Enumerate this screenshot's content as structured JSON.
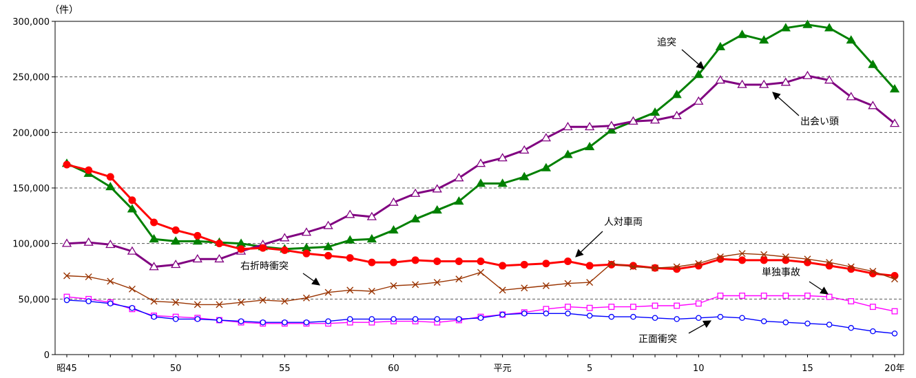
{
  "chart_data": {
    "type": "line",
    "unit_label": "（件）",
    "ylim": [
      0,
      300000
    ],
    "y_ticks": [
      0,
      50000,
      100000,
      150000,
      200000,
      250000,
      300000
    ],
    "y_tick_labels": [
      "0",
      "50,000",
      "100,000",
      "150,000",
      "200,000",
      "250,000",
      "300,000"
    ],
    "x_count": 39,
    "x_tick_positions": [
      0,
      5,
      10,
      15,
      20,
      24,
      29,
      34,
      38
    ],
    "x_tick_labels": [
      "昭45",
      "50",
      "55",
      "60",
      "平元",
      "5",
      "10",
      "15",
      "20年"
    ],
    "grid": "horizontal-dashed",
    "series": [
      {
        "key": "tsuitotsu",
        "name": "追突",
        "color": "#008000",
        "marker": "filled-triangle",
        "values": [
          172000,
          163000,
          151000,
          131000,
          104000,
          102000,
          102000,
          101000,
          100000,
          97000,
          95000,
          96000,
          97000,
          103000,
          104000,
          112000,
          122000,
          130000,
          138000,
          154000,
          154000,
          160000,
          168000,
          180000,
          187000,
          202000,
          210000,
          218000,
          234000,
          252000,
          277000,
          288000,
          283000,
          294000,
          297000,
          294000,
          283000,
          261000,
          239000
        ]
      },
      {
        "key": "deaigashira",
        "name": "出会い頭",
        "color": "#800080",
        "marker": "open-triangle",
        "values": [
          100000,
          101000,
          99000,
          93000,
          79000,
          81000,
          86000,
          86000,
          93000,
          99000,
          105000,
          110000,
          116000,
          126000,
          124000,
          137000,
          145000,
          149000,
          159000,
          172000,
          177000,
          184000,
          195000,
          205000,
          205000,
          206000,
          210000,
          211000,
          215000,
          228000,
          247000,
          243000,
          243000,
          245000,
          251000,
          247000,
          232000,
          224000,
          208000
        ]
      },
      {
        "key": "jintaisharyo",
        "name": "人対車両",
        "color": "#ff0000",
        "marker": "filled-circle",
        "values": [
          171000,
          166000,
          160000,
          139000,
          119000,
          112000,
          107000,
          100000,
          95000,
          96000,
          94000,
          91000,
          89000,
          87000,
          83000,
          83000,
          85000,
          84000,
          84000,
          84000,
          80000,
          81000,
          82000,
          84000,
          80000,
          81000,
          80000,
          78000,
          77000,
          80000,
          86000,
          85000,
          85000,
          85000,
          83000,
          80000,
          77000,
          73000,
          71000
        ]
      },
      {
        "key": "usetsuji",
        "name": "右折時衝突",
        "color": "#993300",
        "marker": "cross",
        "values": [
          71000,
          70000,
          66000,
          59000,
          48000,
          47000,
          45000,
          45000,
          47000,
          49000,
          48000,
          51000,
          56000,
          58000,
          57000,
          62000,
          63000,
          65000,
          68000,
          74000,
          58000,
          60000,
          62000,
          64000,
          65000,
          82000,
          79000,
          78000,
          79000,
          82000,
          88000,
          91000,
          90000,
          88000,
          86000,
          83000,
          79000,
          75000,
          68000
        ]
      },
      {
        "key": "tandoku",
        "name": "単独事故",
        "color": "#ff00ff",
        "marker": "open-square",
        "values": [
          52000,
          50000,
          47000,
          41000,
          35000,
          34000,
          33000,
          31000,
          29000,
          28000,
          28000,
          28000,
          28000,
          29000,
          29000,
          30000,
          30000,
          29000,
          31000,
          34000,
          36000,
          38000,
          41000,
          43000,
          42000,
          43000,
          43000,
          44000,
          44000,
          46000,
          53000,
          53000,
          53000,
          53000,
          53000,
          52000,
          48000,
          43000,
          39000
        ]
      },
      {
        "key": "shomen",
        "name": "正面衝突",
        "color": "#0000ff",
        "marker": "open-circle",
        "values": [
          49000,
          48000,
          46000,
          42000,
          34000,
          32000,
          32000,
          31000,
          30000,
          29000,
          29000,
          29000,
          30000,
          32000,
          32000,
          32000,
          32000,
          32000,
          32000,
          33000,
          36000,
          37000,
          37000,
          37000,
          35000,
          34000,
          34000,
          33000,
          32000,
          33000,
          34000,
          33000,
          30000,
          29000,
          28000,
          27000,
          24000,
          21000,
          19000
        ]
      }
    ],
    "annotations": [
      {
        "series": "tsuitotsu",
        "text": "追突"
      },
      {
        "series": "deaigashira",
        "text": "出会い頭"
      },
      {
        "series": "jintaisharyo",
        "text": "人対車両"
      },
      {
        "series": "usetsuji",
        "text": "右折時衝突"
      },
      {
        "series": "tandoku",
        "text": "単独事故"
      },
      {
        "series": "shomen",
        "text": "正面衝突"
      }
    ]
  }
}
